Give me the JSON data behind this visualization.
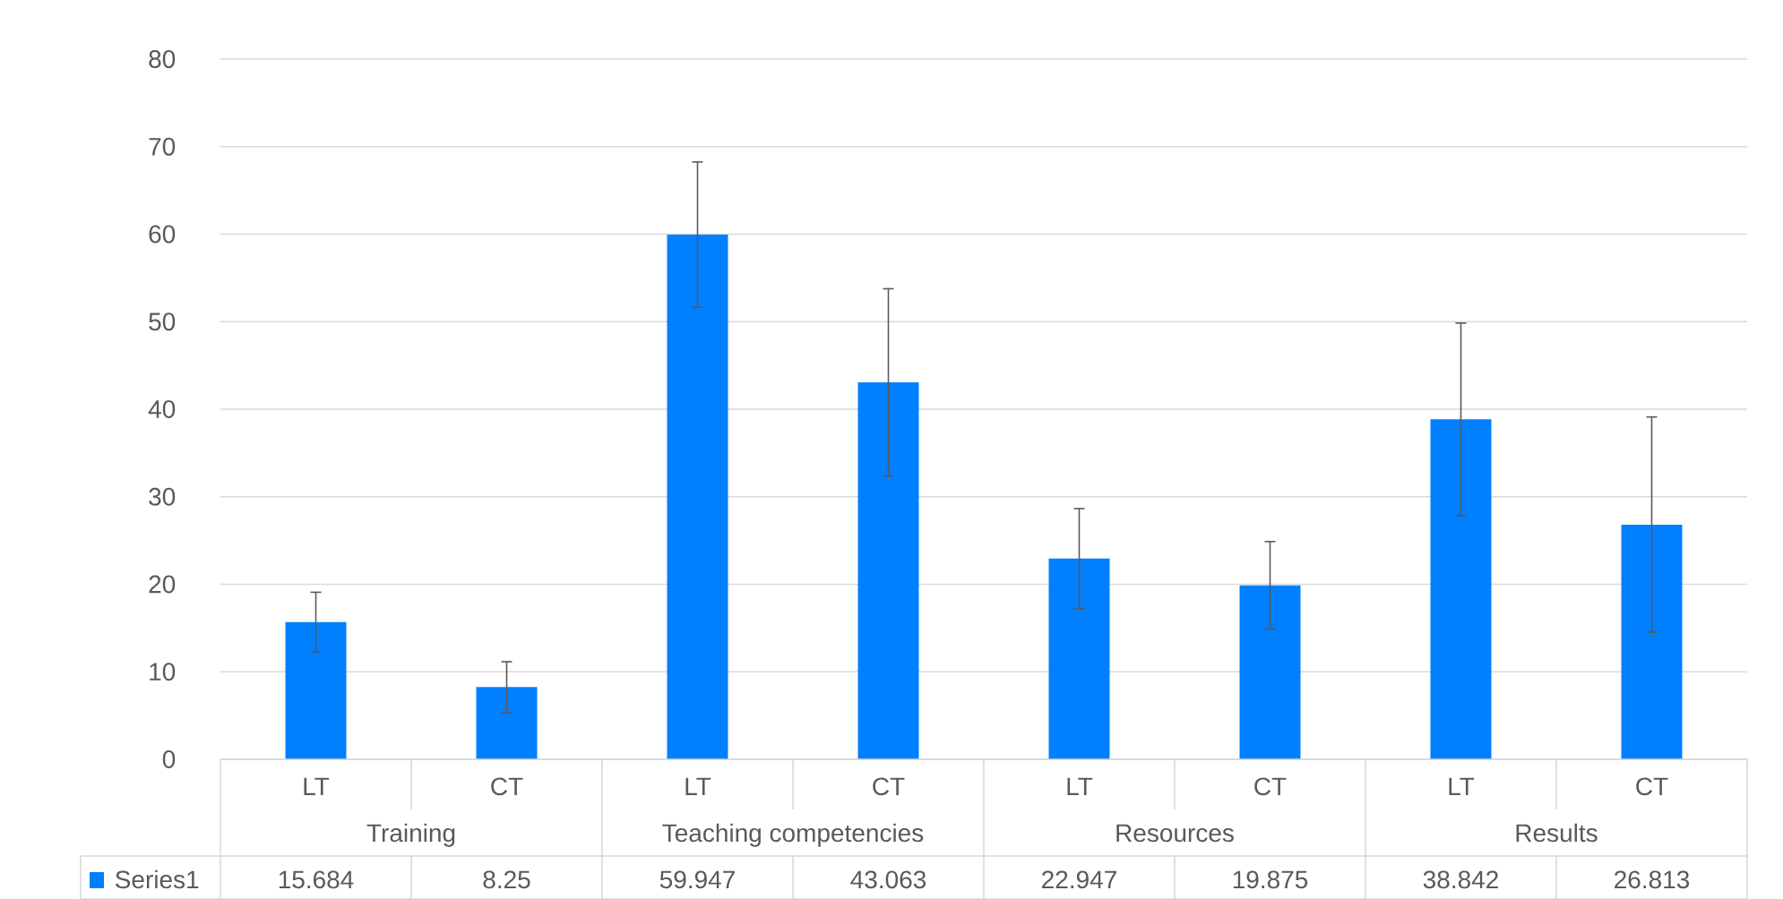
{
  "chart_data": {
    "type": "bar",
    "categories": [
      "LT",
      "CT",
      "LT",
      "CT",
      "LT",
      "CT",
      "LT",
      "CT"
    ],
    "series": [
      {
        "name": "Series1",
        "color": "#0080ff",
        "values": [
          15.684,
          8.25,
          59.947,
          43.063,
          22.947,
          19.875,
          38.842,
          26.813
        ],
        "errors": [
          3.4,
          2.9,
          8.3,
          10.7,
          5.7,
          5.0,
          11,
          12.3
        ]
      }
    ],
    "annotations": [
      "Training",
      "Teaching competencies",
      "Resources",
      "Results"
    ],
    "ylim": [
      0,
      80
    ],
    "yticks": [
      0,
      10,
      20,
      30,
      40,
      50,
      60,
      70,
      80
    ],
    "grid": "y",
    "legend": "bottom",
    "data_labels": true
  }
}
